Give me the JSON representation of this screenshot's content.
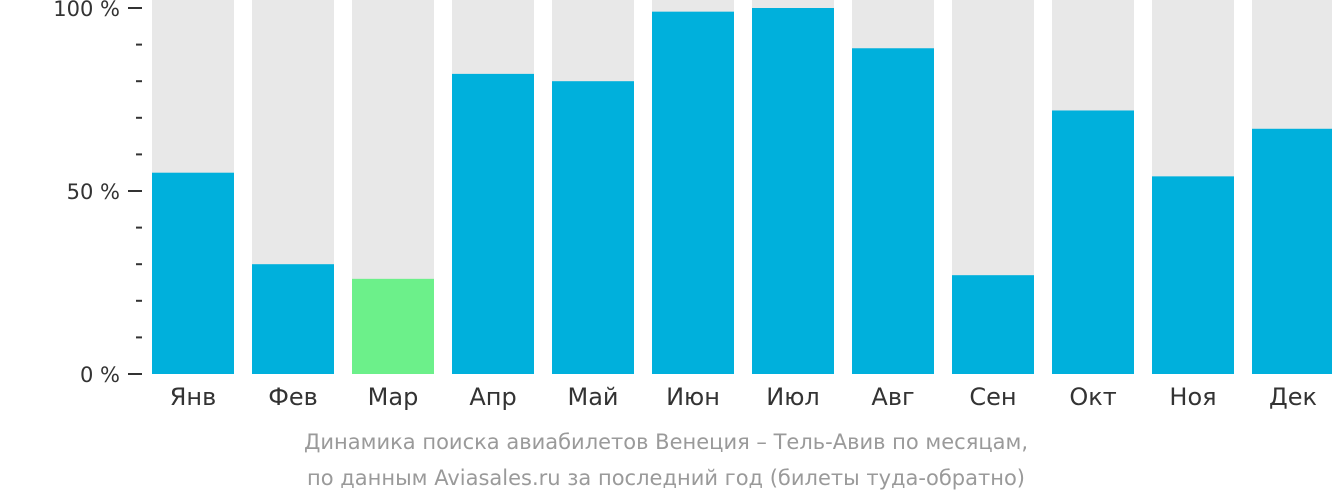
{
  "chart_data": {
    "type": "bar",
    "categories": [
      "Янв",
      "Фев",
      "Мар",
      "Апр",
      "Май",
      "Июн",
      "Июл",
      "Авг",
      "Сен",
      "Окт",
      "Ноя",
      "Дек"
    ],
    "values": [
      55,
      30,
      26,
      82,
      80,
      99,
      100,
      89,
      27,
      72,
      54,
      67
    ],
    "ylim": [
      0,
      100
    ],
    "yticks": [
      {
        "value": 0,
        "label": "0 %"
      },
      {
        "value": 50,
        "label": "50 %"
      },
      {
        "value": 100,
        "label": "100 %"
      }
    ],
    "minor_tick_step": 10,
    "highlight_index": 2,
    "colors": {
      "bar": "#00b0dc",
      "highlight": "#6cf08a",
      "track": "#e8e8e8",
      "axis": "#333333"
    }
  },
  "caption": {
    "line1": "Динамика поиска авиабилетов Венеция – Тель-Авив по месяцам,",
    "line2": "по данным Aviasales.ru за последний год (билеты туда-обратно)"
  }
}
